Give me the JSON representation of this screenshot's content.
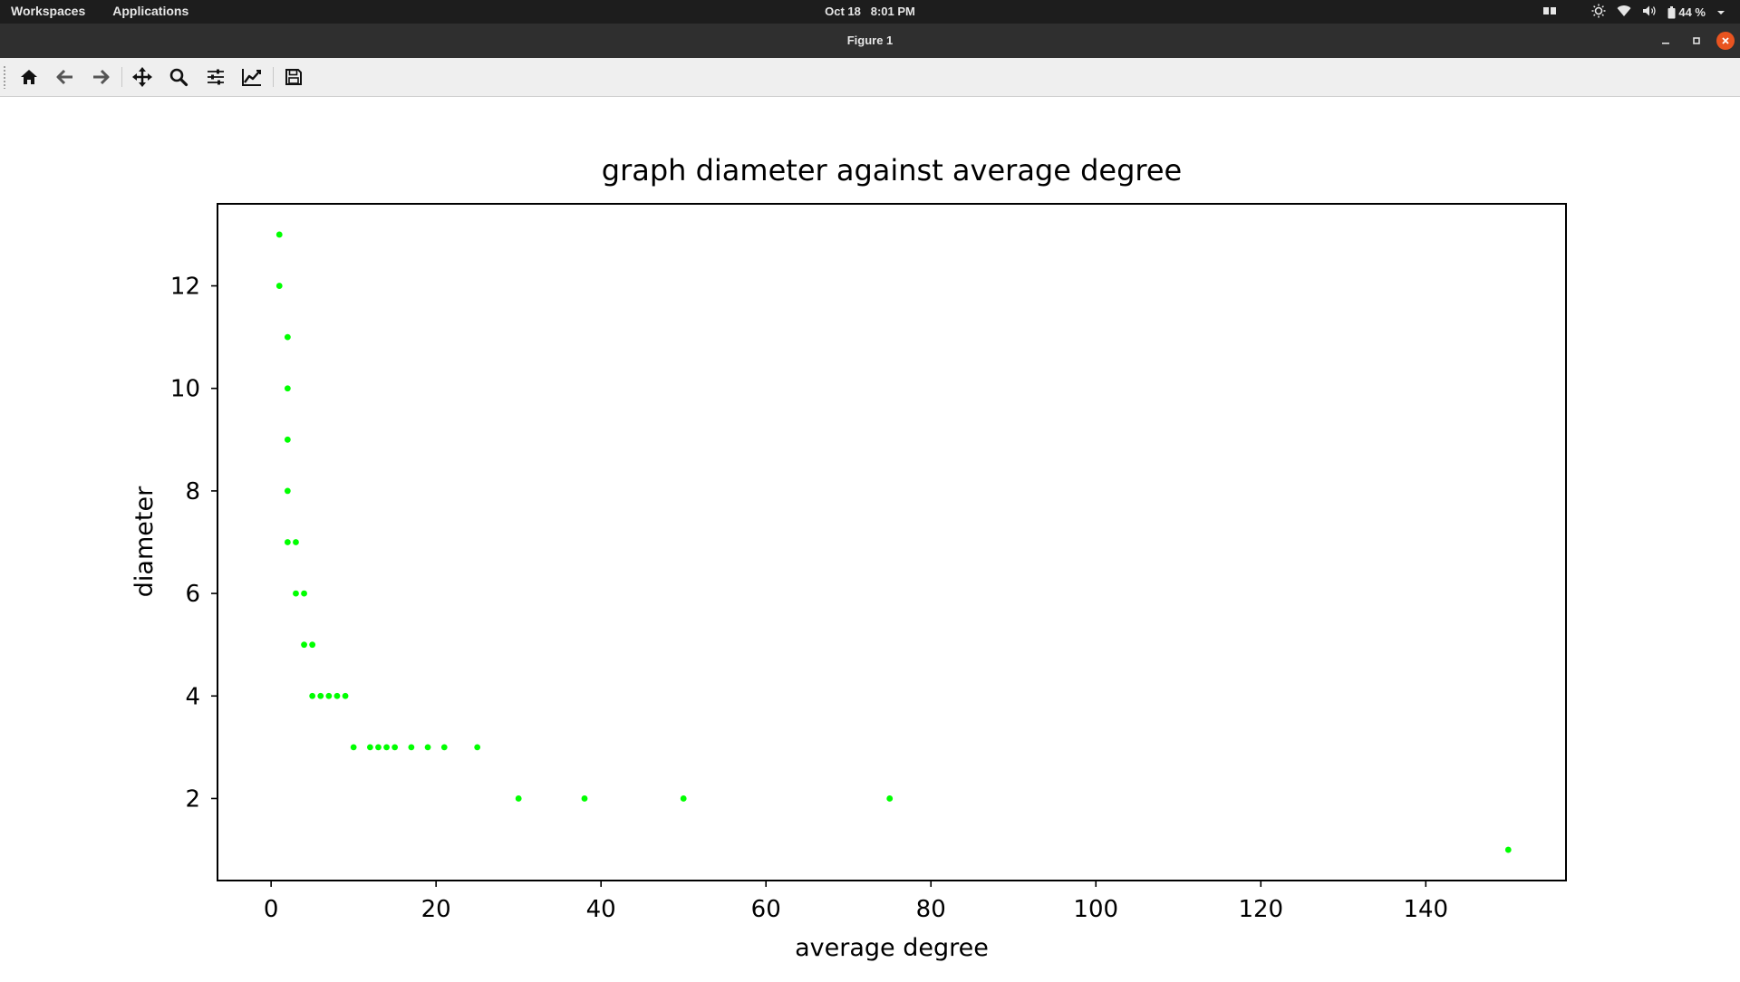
{
  "topbar": {
    "workspaces": "Workspaces",
    "applications": "Applications",
    "date": "Oct 18",
    "time": "8:01 PM",
    "battery": "44 %"
  },
  "window": {
    "title": "Figure 1"
  },
  "toolbar": {
    "buttons": [
      "home-icon",
      "back-arrow-icon",
      "forward-arrow-icon",
      "pan-icon",
      "zoom-icon",
      "subplots-config-icon",
      "axes-edit-icon",
      "save-icon"
    ]
  },
  "chart_data": {
    "type": "scatter",
    "title": "graph diameter against average degree",
    "xlabel": "average degree",
    "ylabel": "diameter",
    "xlim": [
      -6.5,
      157
    ],
    "ylim": [
      0.4,
      13.6
    ],
    "xticks": [
      0,
      20,
      40,
      60,
      80,
      100,
      120,
      140
    ],
    "yticks": [
      2,
      4,
      6,
      8,
      10,
      12
    ],
    "grid": false,
    "marker_color": "#00ff00",
    "points": [
      [
        1,
        13
      ],
      [
        1,
        12
      ],
      [
        2,
        11
      ],
      [
        2,
        10
      ],
      [
        2,
        9
      ],
      [
        2,
        8
      ],
      [
        2,
        7
      ],
      [
        3,
        7
      ],
      [
        3,
        6
      ],
      [
        4,
        6
      ],
      [
        4,
        5
      ],
      [
        5,
        5
      ],
      [
        5,
        4
      ],
      [
        6,
        4
      ],
      [
        7,
        4
      ],
      [
        8,
        4
      ],
      [
        9,
        4
      ],
      [
        10,
        3
      ],
      [
        12,
        3
      ],
      [
        13,
        3
      ],
      [
        14,
        3
      ],
      [
        15,
        3
      ],
      [
        17,
        3
      ],
      [
        19,
        3
      ],
      [
        21,
        3
      ],
      [
        25,
        3
      ],
      [
        30,
        2
      ],
      [
        38,
        2
      ],
      [
        50,
        2
      ],
      [
        75,
        2
      ],
      [
        150,
        1
      ]
    ]
  }
}
